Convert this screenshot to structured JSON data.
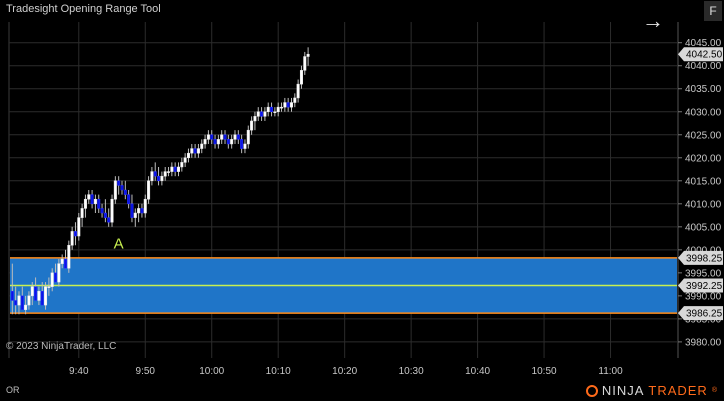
{
  "window": {
    "title": "Tradesight Opening Range Tool",
    "copyright": "© 2023 NinjaTrader, LLC",
    "f_button": "F",
    "arrow_glyph": "→"
  },
  "bottom": {
    "tab_label": "OR",
    "brand_prefix": "NINJA",
    "brand_suffix": "TRADER",
    "brand_mark": "®"
  },
  "colors": {
    "background": "#000000",
    "range_fill": "#1f75c8",
    "range_border": "#ff8c1a",
    "mid_line": "#c8f050",
    "bull_candle": "#ffffff",
    "bear_candle": "#0a14e6",
    "marker_text": "#c8f050",
    "last_price_tag": "#d8d8d8"
  },
  "chart_data": {
    "type": "candlestick",
    "y_ticks": [
      "4045.00",
      "4040.00",
      "4035.00",
      "4030.00",
      "4025.00",
      "4020.00",
      "4015.00",
      "4010.00",
      "4005.00",
      "4000.00",
      "3995.00",
      "3990.00",
      "3985.00",
      "3980.00"
    ],
    "y_tick_values": [
      4045,
      4040,
      4035,
      4030,
      4025,
      4020,
      4015,
      4010,
      4005,
      4000,
      3995,
      3990,
      3985,
      3980
    ],
    "ylim": [
      3976.5,
      4049.5
    ],
    "x_ticks": [
      "9:40",
      "9:50",
      "10:00",
      "10:10",
      "10:20",
      "10:30",
      "10:40",
      "10:50",
      "11:00"
    ],
    "x_tick_minutes": [
      40,
      50,
      60,
      70,
      80,
      90,
      100,
      110,
      120
    ],
    "xlim_minutes": [
      29.5,
      130
    ],
    "price_tags": [
      {
        "label": "4042.50",
        "value": 4042.5,
        "kind": "last"
      },
      {
        "label": "3998.25",
        "value": 3998.25,
        "kind": "range_high"
      },
      {
        "label": "3992.25",
        "value": 3992.25,
        "kind": "range_mid"
      },
      {
        "label": "3986.25",
        "value": 3986.25,
        "kind": "range_low"
      }
    ],
    "opening_range": {
      "high": 3998.25,
      "mid": 3992.25,
      "low": 3986.25,
      "start_minute": 30
    },
    "annotation": {
      "text": "A",
      "minute": 46,
      "value": 4000.3
    },
    "candles_per_minute": 2,
    "candles": [
      [
        3991,
        3997,
        3986,
        3989
      ],
      [
        3989,
        3992,
        3986,
        3988
      ],
      [
        3988,
        3991,
        3986,
        3990
      ],
      [
        3990,
        3992,
        3987,
        3987
      ],
      [
        3987,
        3990,
        3986,
        3988
      ],
      [
        3988,
        3991,
        3987,
        3990
      ],
      [
        3990,
        3993,
        3988,
        3992
      ],
      [
        3992,
        3994,
        3989,
        3989
      ],
      [
        3989,
        3992,
        3988,
        3991
      ],
      [
        3991,
        3993,
        3988,
        3988
      ],
      [
        3988,
        3993,
        3987,
        3992
      ],
      [
        3992,
        3994,
        3990,
        3992
      ],
      [
        3992,
        3996,
        3991,
        3995
      ],
      [
        3995,
        3997,
        3993,
        3993
      ],
      [
        3993,
        3998,
        3992,
        3997
      ],
      [
        3997,
        3999,
        3996,
        3998
      ],
      [
        3998,
        4000,
        3996,
        3996
      ],
      [
        3996,
        4002,
        3995,
        4001
      ],
      [
        4001,
        4005,
        4000,
        4004
      ],
      [
        4004,
        4006,
        4001,
        4003
      ],
      [
        4003,
        4008,
        4002,
        4007
      ],
      [
        4007,
        4010,
        4005,
        4009
      ],
      [
        4009,
        4012,
        4007,
        4011
      ],
      [
        4011,
        4013,
        4010,
        4012
      ],
      [
        4012,
        4013,
        4009,
        4010
      ],
      [
        4010,
        4012,
        4008,
        4011
      ],
      [
        4011,
        4012,
        4008,
        4009
      ],
      [
        4009,
        4010,
        4007,
        4008
      ],
      [
        4008,
        4011,
        4006,
        4007
      ],
      [
        4007,
        4009,
        4005,
        4006
      ],
      [
        4006,
        4012,
        4005,
        4011
      ],
      [
        4011,
        4016,
        4010,
        4015
      ],
      [
        4015,
        4016,
        4012,
        4014
      ],
      [
        4014,
        4015,
        4012,
        4013
      ],
      [
        4013,
        4015,
        4011,
        4012
      ],
      [
        4012,
        4013,
        4009,
        4010
      ],
      [
        4010,
        4012,
        4006,
        4007
      ],
      [
        4007,
        4009,
        4005,
        4008
      ],
      [
        4008,
        4010,
        4006,
        4009
      ],
      [
        4009,
        4010,
        4007,
        4008
      ],
      [
        4008,
        4012,
        4007,
        4011
      ],
      [
        4011,
        4016,
        4010,
        4015
      ],
      [
        4015,
        4018,
        4014,
        4017
      ],
      [
        4017,
        4019,
        4015,
        4016
      ],
      [
        4016,
        4018,
        4014,
        4015
      ],
      [
        4015,
        4017,
        4014,
        4016
      ],
      [
        4016,
        4018,
        4015,
        4017
      ],
      [
        4017,
        4018,
        4016,
        4017
      ],
      [
        4017,
        4019,
        4016,
        4018
      ],
      [
        4018,
        4019,
        4016,
        4017
      ],
      [
        4017,
        4019,
        4016,
        4018
      ],
      [
        4018,
        4020,
        4017,
        4019
      ],
      [
        4019,
        4021,
        4018,
        4020
      ],
      [
        4020,
        4022,
        4019,
        4021
      ],
      [
        4021,
        4023,
        4020,
        4022
      ],
      [
        4022,
        4023,
        4020,
        4021
      ],
      [
        4021,
        4023,
        4020,
        4022
      ],
      [
        4022,
        4024,
        4021,
        4023
      ],
      [
        4023,
        4025,
        4022,
        4024
      ],
      [
        4024,
        4026,
        4023,
        4025
      ],
      [
        4025,
        4026,
        4023,
        4024
      ],
      [
        4024,
        4025,
        4022,
        4023
      ],
      [
        4023,
        4025,
        4022,
        4024
      ],
      [
        4024,
        4026,
        4023,
        4025
      ],
      [
        4025,
        4026,
        4023,
        4024
      ],
      [
        4024,
        4025,
        4022,
        4023
      ],
      [
        4023,
        4025,
        4022,
        4024
      ],
      [
        4024,
        4026,
        4023,
        4025
      ],
      [
        4025,
        4026,
        4023,
        4024
      ],
      [
        4024,
        4025,
        4021,
        4022
      ],
      [
        4022,
        4024,
        4021,
        4023
      ],
      [
        4023,
        4027,
        4022,
        4026
      ],
      [
        4026,
        4029,
        4025,
        4028
      ],
      [
        4028,
        4030,
        4026,
        4029
      ],
      [
        4029,
        4031,
        4028,
        4030
      ],
      [
        4030,
        4031,
        4028,
        4029
      ],
      [
        4029,
        4031,
        4028,
        4030
      ],
      [
        4030,
        4032,
        4029,
        4031
      ],
      [
        4031,
        4032,
        4029,
        4030
      ],
      [
        4030,
        4031,
        4029,
        4030
      ],
      [
        4030,
        4032,
        4029,
        4031
      ],
      [
        4031,
        4032,
        4030,
        4031
      ],
      [
        4031,
        4033,
        4030,
        4032
      ],
      [
        4032,
        4033,
        4030,
        4031
      ],
      [
        4031,
        4033,
        4030,
        4032
      ],
      [
        4032,
        4034,
        4031,
        4033
      ],
      [
        4033,
        4037,
        4032,
        4036
      ],
      [
        4036,
        4040,
        4035,
        4039
      ],
      [
        4039,
        4043,
        4038,
        4042
      ],
      [
        4042,
        4044,
        4040,
        4042.5
      ]
    ]
  }
}
